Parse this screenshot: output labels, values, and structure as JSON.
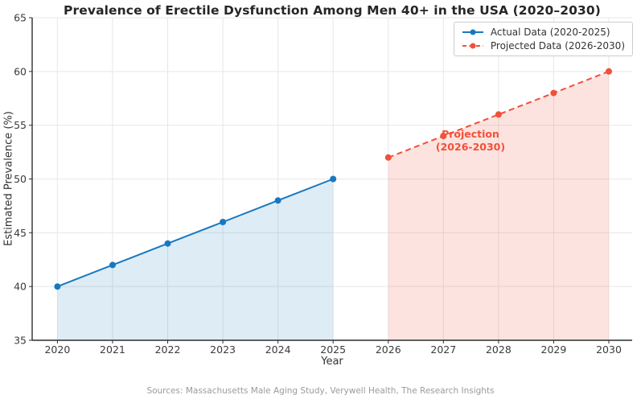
{
  "chart_data": {
    "type": "line",
    "title": "Prevalence of Erectile Dysfunction Among Men 40+ in the USA (2020–2030)",
    "xlabel": "Year",
    "ylabel": "Estimated Prevalence (%)",
    "source_note": "Sources: Massachusetts Male Aging Study, Verywell Health, The Research Insights",
    "x_ticks": [
      2020,
      2021,
      2022,
      2023,
      2024,
      2025,
      2026,
      2027,
      2028,
      2029,
      2030
    ],
    "y_ticks": [
      35,
      40,
      45,
      50,
      55,
      60,
      65
    ],
    "xlim": [
      2019.54,
      2030.42
    ],
    "ylim": [
      35,
      65
    ],
    "grid": true,
    "grid_color": "#e7e7e7",
    "axis_color": "#2e2e2e",
    "tick_label_color": "#3a3a3a",
    "legend_position": "upper right",
    "series": [
      {
        "name": "Actual Data (2020-2025)",
        "x": [
          2020,
          2021,
          2022,
          2023,
          2024,
          2025
        ],
        "y": [
          40,
          42,
          44,
          46,
          48,
          50
        ],
        "color": "#1878bf",
        "line_style": "solid",
        "marker": "circle",
        "area_fill": "rgba(24,120,191,0.14)"
      },
      {
        "name": "Projected Data (2026-2030)",
        "x": [
          2026,
          2027,
          2028,
          2029,
          2030
        ],
        "y": [
          52,
          54,
          56,
          58,
          60
        ],
        "color": "#f1503a",
        "line_style": "dashed",
        "marker": "circle",
        "area_fill": "rgba(241,80,58,0.16)"
      }
    ],
    "annotation": {
      "line1": "Projection",
      "line2": "(2026-2030)",
      "x": 2027.5,
      "y": 54,
      "color": "#f1503a"
    }
  }
}
